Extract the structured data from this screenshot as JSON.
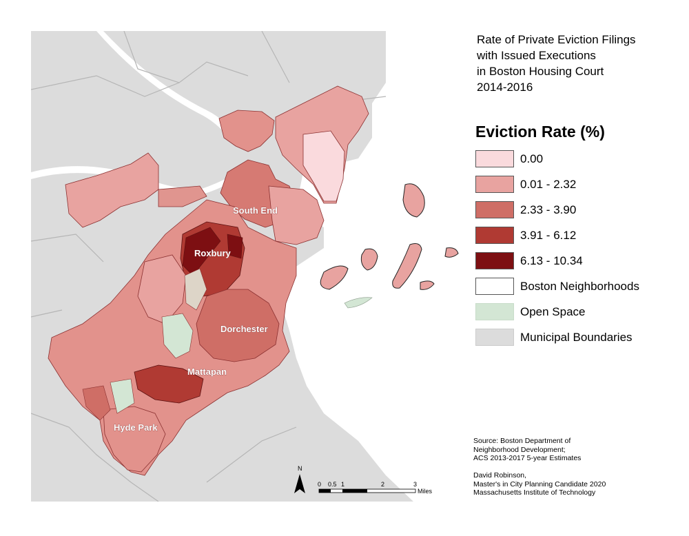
{
  "title": {
    "line1": "Rate of Private Eviction Filings",
    "line2": "with Issued Executions",
    "line3": "in Boston Housing Court",
    "line4": "2014-2016"
  },
  "legend": {
    "heading": "Eviction Rate (%)",
    "items": [
      {
        "label": "0.00",
        "color": "#fadadd"
      },
      {
        "label": "0.01 - 2.32",
        "color": "#e8a3a0"
      },
      {
        "label": "2.33 - 3.90",
        "color": "#cf6e66"
      },
      {
        "label": "3.91 - 6.12",
        "color": "#b03a33"
      },
      {
        "label": "6.13 - 10.34",
        "color": "#7d0f12"
      },
      {
        "label": "Boston Neighborhoods",
        "color": "#ffffff"
      },
      {
        "label": "Open Space",
        "color": "#d3e6d4"
      },
      {
        "label": "Municipal Boundaries",
        "color": "#dcdcdc"
      }
    ]
  },
  "neighborhood_labels": {
    "south_end": "South End",
    "roxbury": "Roxbury",
    "dorchester": "Dorchester",
    "mattapan": "Mattapan",
    "hyde_park": "Hyde Park"
  },
  "source": {
    "line1": "Source: Boston Department of",
    "line2": "Neighborhood Development;",
    "line3": "ACS 2013-2017 5-year Estimates"
  },
  "credit": {
    "line1": "David Robinson,",
    "line2": "Master's in City Planning Candidate 2020",
    "line3": "Massachusetts Institute of Technology"
  },
  "north_arrow": {
    "label": "N"
  },
  "scale_bar": {
    "ticks": [
      "0",
      "0.5",
      "1",
      "2",
      "3"
    ],
    "unit": "Miles"
  },
  "colors": {
    "land": "#dcdcdc",
    "water": "#ffffff",
    "boundary": "#b5b5b5",
    "open_space": "#d3e6d4"
  }
}
